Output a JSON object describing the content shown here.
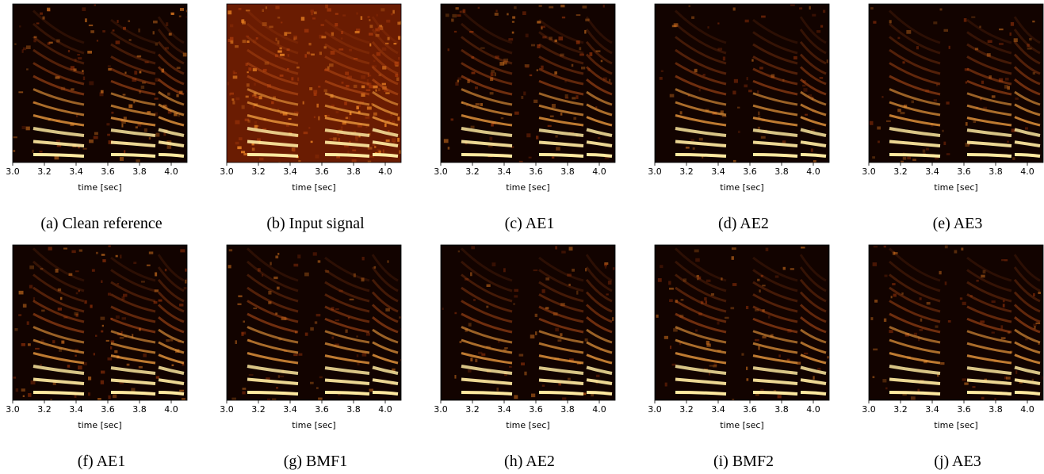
{
  "axis": {
    "xlim": [
      3.0,
      4.1
    ],
    "xlabel": "time [sec]",
    "xticks": [
      {
        "value": 3.0,
        "label": "3.0"
      },
      {
        "value": 3.2,
        "label": "3.2"
      },
      {
        "value": 3.4,
        "label": "3.4"
      },
      {
        "value": 3.6,
        "label": "3.6"
      },
      {
        "value": 3.8,
        "label": "3.8"
      },
      {
        "value": 4.0,
        "label": "4.0"
      }
    ]
  },
  "panels": [
    {
      "caption": "(a) Clean reference"
    },
    {
      "caption": "(b) Input signal"
    },
    {
      "caption": "(c) AE1"
    },
    {
      "caption": "(d) AE2"
    },
    {
      "caption": "(e) AE3"
    },
    {
      "caption": "(f) AE1"
    },
    {
      "caption": "(g) BMF1"
    },
    {
      "caption": "(h) AE2"
    },
    {
      "caption": "(i) BMF2"
    },
    {
      "caption": "(j) AE3"
    }
  ]
}
